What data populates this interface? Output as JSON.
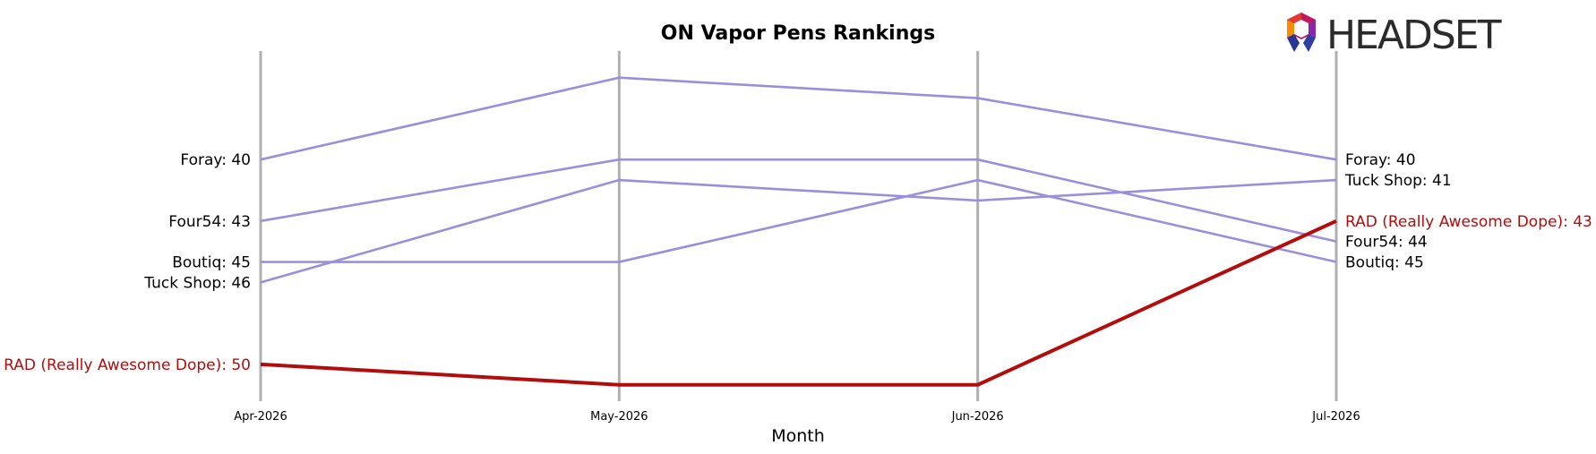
{
  "chart_data": {
    "type": "line",
    "title": "ON Vapor Pens Rankings",
    "xlabel": "Month",
    "ylabel": "",
    "x": [
      "Apr-2026",
      "May-2026",
      "Jun-2026",
      "Jul-2026"
    ],
    "ylim": [
      51.8,
      34.7
    ],
    "y_inverted": true,
    "grid": false,
    "series": [
      {
        "name": "Foray",
        "values": [
          40,
          36,
          37,
          40
        ],
        "color": "#9b8fdc",
        "highlight": false
      },
      {
        "name": "Four54",
        "values": [
          43,
          40,
          40,
          44
        ],
        "color": "#9b8fdc",
        "highlight": false
      },
      {
        "name": "Boutiq",
        "values": [
          45,
          45,
          41,
          45
        ],
        "color": "#9b8fdc",
        "highlight": false
      },
      {
        "name": "Tuck Shop",
        "values": [
          46,
          41,
          42,
          41
        ],
        "color": "#9b8fdc",
        "highlight": false
      },
      {
        "name": "RAD (Really Awesome Dope)",
        "values": [
          50,
          51,
          51,
          43
        ],
        "color": "#b30c0c",
        "highlight": true
      }
    ],
    "start_labels": [
      {
        "series": "Foray",
        "text": "Foray: 40"
      },
      {
        "series": "Four54",
        "text": "Four54: 43"
      },
      {
        "series": "Boutiq",
        "text": "Boutiq: 45"
      },
      {
        "series": "Tuck Shop",
        "text": "Tuck Shop: 46"
      },
      {
        "series": "RAD (Really Awesome Dope)",
        "text": "RAD (Really Awesome Dope): 50"
      }
    ],
    "end_labels": [
      {
        "series": "Foray",
        "text": "Foray: 40"
      },
      {
        "series": "Tuck Shop",
        "text": "Tuck Shop: 41"
      },
      {
        "series": "RAD (Really Awesome Dope)",
        "text": "RAD (Really Awesome Dope): 43"
      },
      {
        "series": "Four54",
        "text": "Four54: 44"
      },
      {
        "series": "Boutiq",
        "text": "Boutiq: 45"
      }
    ]
  },
  "logo": {
    "text": "HEADSET"
  },
  "colors": {
    "axis_line": "#b0b0b0",
    "text": "#000000",
    "highlight": "#b30c0c",
    "normal": "#9b8fdc"
  }
}
